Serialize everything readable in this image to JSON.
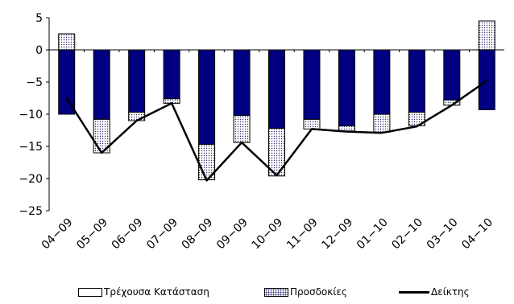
{
  "chart_data": {
    "type": "bar",
    "stacked": true,
    "categories": [
      "04-09",
      "05-09",
      "06-09",
      "07-09",
      "08-09",
      "09-09",
      "10-09",
      "11-09",
      "12-09",
      "01-10",
      "02-10",
      "03-10",
      "04-10"
    ],
    "series": [
      {
        "name": "Τρέχουσα Κατάσταση",
        "kind": "bar",
        "pattern": "solid",
        "color": "#000080",
        "values": [
          -10,
          -10.8,
          -9.7,
          -7.6,
          -14.7,
          -10.2,
          -12.2,
          -10.8,
          -11.8,
          -10,
          -9.7,
          -7.8,
          -9.3
        ]
      },
      {
        "name": "Προσδοκίες",
        "kind": "bar",
        "pattern": "dotted",
        "color": "#ffffff",
        "values": [
          2.5,
          -5.2,
          -1.3,
          -0.7,
          -5.5,
          -4.2,
          -7.4,
          -1.5,
          -0.8,
          -2.8,
          -2.1,
          -0.8,
          4.5
        ]
      },
      {
        "name": "Δείκτης",
        "kind": "line",
        "color": "#000000",
        "values": [
          -7.5,
          -16,
          -11,
          -8.3,
          -20.3,
          -14.4,
          -19.5,
          -12.3,
          -12.7,
          -12.9,
          -11.9,
          -8.6,
          -4.8
        ]
      }
    ],
    "ylim": [
      -25,
      5
    ],
    "yticks": [
      "5",
      "0",
      "-5",
      "-10",
      "-15",
      "-20",
      "-25"
    ],
    "grid": false,
    "legend_position": "bottom"
  }
}
